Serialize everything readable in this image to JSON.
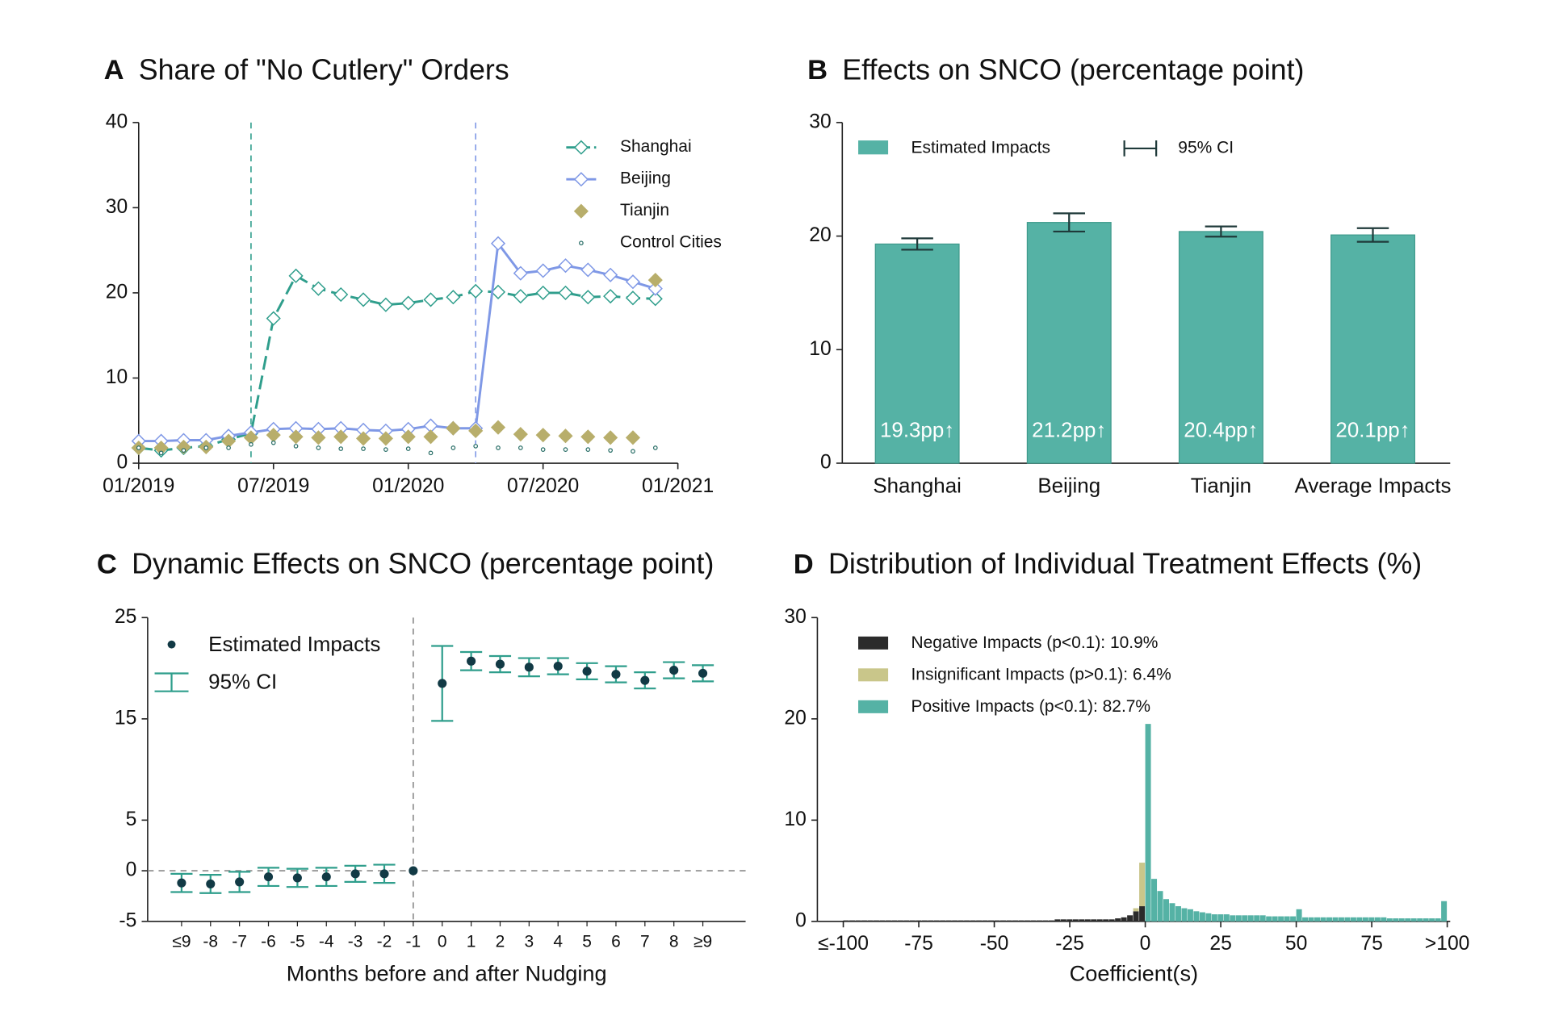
{
  "chart_data": [
    {
      "type": "line",
      "panel": "A",
      "title": "Share of \"No Cutlery\" Orders",
      "x": [
        "2019-01",
        "2019-02",
        "2019-03",
        "2019-04",
        "2019-05",
        "2019-06",
        "2019-07",
        "2019-08",
        "2019-09",
        "2019-10",
        "2019-11",
        "2019-12",
        "2020-01",
        "2020-02",
        "2020-03",
        "2020-04",
        "2020-05",
        "2020-06",
        "2020-07",
        "2020-08",
        "2020-09",
        "2020-10",
        "2020-11",
        "2020-12"
      ],
      "xlim": [
        "2019-01",
        "2021-01"
      ],
      "xticks": [
        {
          "value": "2019-01",
          "label": "01/2019"
        },
        {
          "value": "2019-07",
          "label": "07/2019"
        },
        {
          "value": "2020-01",
          "label": "01/2020"
        },
        {
          "value": "2020-07",
          "label": "07/2020"
        },
        {
          "value": "2021-01",
          "label": "01/2021"
        }
      ],
      "ylim": [
        0,
        40
      ],
      "yticks": [
        0,
        10,
        20,
        30,
        40
      ],
      "vlines": [
        {
          "x": "2019-06",
          "color": "#2f9e8c"
        },
        {
          "x": "2020-04",
          "color": "#7f98e6"
        }
      ],
      "series": [
        {
          "name": "Shanghai",
          "color": "#2f9e8c",
          "marker": "diamond-open",
          "line_style": "dashed",
          "values": [
            1.8,
            1.5,
            1.8,
            2.0,
            2.8,
            3.5,
            17.0,
            22.0,
            20.5,
            19.8,
            19.2,
            18.6,
            18.8,
            19.2,
            19.5,
            20.2,
            20.1,
            19.6,
            20.0,
            20.0,
            19.5,
            19.6,
            19.4,
            19.3
          ]
        },
        {
          "name": "Beijing",
          "color": "#7f98e6",
          "marker": "diamond-open",
          "line_style": "solid",
          "values": [
            2.6,
            2.6,
            2.7,
            2.7,
            3.2,
            3.6,
            4.0,
            4.1,
            4.0,
            4.1,
            3.9,
            3.8,
            4.0,
            4.4,
            4.1,
            4.1,
            25.8,
            22.3,
            22.6,
            23.2,
            22.7,
            22.1,
            21.3,
            20.5
          ]
        },
        {
          "name": "Tianjin",
          "color": "#b8ae6b",
          "marker": "diamond",
          "line_style": "none",
          "values": [
            1.8,
            1.8,
            1.9,
            1.9,
            2.6,
            3.0,
            3.3,
            3.1,
            3.0,
            3.1,
            2.9,
            2.9,
            3.1,
            3.1,
            4.1,
            3.8,
            4.2,
            3.4,
            3.3,
            3.2,
            3.1,
            3.0,
            3.0,
            21.5
          ]
        },
        {
          "name": "Control Cities",
          "color": "#2a6f68",
          "marker": "circle-open",
          "line_style": "none",
          "values": [
            1.8,
            1.2,
            1.5,
            1.8,
            1.8,
            2.2,
            2.4,
            2.0,
            1.8,
            1.7,
            1.7,
            1.6,
            1.7,
            1.2,
            1.8,
            2.0,
            1.8,
            1.8,
            1.6,
            1.6,
            1.6,
            1.5,
            1.4,
            1.8
          ]
        }
      ]
    },
    {
      "type": "bar",
      "panel": "B",
      "title": "Effects on SNCO (percentage point)",
      "categories": [
        "Shanghai",
        "Beijing",
        "Tianjin",
        "Average Impacts"
      ],
      "error_name": "95% CI",
      "error_color": "#1f3a3a",
      "ylim": [
        0,
        30
      ],
      "yticks": [
        0,
        10,
        20,
        30
      ],
      "series": [
        {
          "name": "Estimated Impacts",
          "color": "#55b2a5",
          "values": [
            19.3,
            21.2,
            20.4,
            20.1
          ],
          "value_labels": [
            "19.3pp↑",
            "21.2pp↑",
            "20.4pp↑",
            "20.1pp↑"
          ],
          "errors": [
            0.5,
            0.8,
            0.45,
            0.6
          ]
        }
      ]
    },
    {
      "type": "errorbar",
      "panel": "C",
      "title": "Dynamic Effects on SNCO (percentage point)",
      "x_label": "Months before and after Nudging",
      "categories": [
        "≤9",
        "-8",
        "-7",
        "-6",
        "-5",
        "-4",
        "-3",
        "-2",
        "-1",
        "0",
        "1",
        "2",
        "3",
        "4",
        "5",
        "6",
        "7",
        "8",
        "≥9"
      ],
      "error_name": "95% CI",
      "error_color": "#2f9e8c",
      "ylim": [
        -5,
        25
      ],
      "yticks": [
        -5,
        0,
        5,
        15,
        25
      ],
      "hline": 0,
      "vline": "-1",
      "series": [
        {
          "name": "Estimated Impacts",
          "color": "#123a45",
          "values": [
            -1.2,
            -1.3,
            -1.1,
            -0.6,
            -0.7,
            -0.6,
            -0.3,
            -0.3,
            0,
            18.5,
            20.7,
            20.4,
            20.1,
            20.2,
            19.7,
            19.4,
            18.8,
            19.8,
            19.5
          ],
          "errors": [
            0.9,
            0.9,
            1.0,
            0.9,
            0.9,
            0.9,
            0.8,
            0.9,
            0,
            3.7,
            0.9,
            0.8,
            0.9,
            0.8,
            0.8,
            0.8,
            0.8,
            0.8,
            0.8
          ]
        }
      ]
    },
    {
      "type": "histogram",
      "panel": "D",
      "title": "Distribution of Individual Treatment Effects (%)",
      "x_label": "Coefficient(s)",
      "bins": [
        -100,
        -98,
        -96,
        -94,
        -92,
        -90,
        -88,
        -86,
        -84,
        -82,
        -80,
        -78,
        -76,
        -74,
        -72,
        -70,
        -68,
        -66,
        -64,
        -62,
        -60,
        -58,
        -56,
        -54,
        -52,
        -50,
        -48,
        -46,
        -44,
        -42,
        -40,
        -38,
        -36,
        -34,
        -32,
        -30,
        -28,
        -26,
        -24,
        -22,
        -20,
        -18,
        -16,
        -14,
        -12,
        -10,
        -8,
        -6,
        -4,
        -2,
        0,
        2,
        4,
        6,
        8,
        10,
        12,
        14,
        16,
        18,
        20,
        22,
        24,
        26,
        28,
        30,
        32,
        34,
        36,
        38,
        40,
        42,
        44,
        46,
        48,
        50,
        52,
        54,
        56,
        58,
        60,
        62,
        64,
        66,
        68,
        70,
        72,
        74,
        76,
        78,
        80,
        82,
        84,
        86,
        88,
        90,
        92,
        94,
        96,
        98,
        100
      ],
      "xlim": [
        -100,
        100
      ],
      "xticks": [
        {
          "value": -100,
          "label": "≤-100"
        },
        -75,
        -50,
        -25,
        0,
        25,
        50,
        75,
        {
          "value": 100,
          "label": ">100"
        }
      ],
      "ylim": [
        0,
        30
      ],
      "yticks": [
        0,
        10,
        20,
        30
      ],
      "series": [
        {
          "name": "Negative Impacts (p<0.1): 10.9%",
          "color": "#2b2b2b",
          "values": [
            0.1,
            0.1,
            0.1,
            0.1,
            0.1,
            0.1,
            0.1,
            0.1,
            0.1,
            0.1,
            0.1,
            0.1,
            0.1,
            0.1,
            0.1,
            0.1,
            0.1,
            0.1,
            0.1,
            0.1,
            0.1,
            0.1,
            0.1,
            0.1,
            0.1,
            0.1,
            0.1,
            0.1,
            0.1,
            0.1,
            0.1,
            0.1,
            0.1,
            0.1,
            0.1,
            0.2,
            0.2,
            0.2,
            0.2,
            0.2,
            0.2,
            0.2,
            0.2,
            0.2,
            0.2,
            0.3,
            0.4,
            0.6,
            1.0,
            1.5,
            0,
            0,
            0,
            0,
            0,
            0,
            0,
            0,
            0,
            0,
            0,
            0,
            0,
            0,
            0,
            0,
            0,
            0,
            0,
            0,
            0,
            0,
            0,
            0,
            0,
            0,
            0,
            0,
            0,
            0,
            0,
            0,
            0,
            0,
            0,
            0,
            0,
            0,
            0,
            0,
            0,
            0,
            0,
            0,
            0,
            0,
            0,
            0,
            0,
            0
          ]
        },
        {
          "name": "Insignificant Impacts (p>0.1): 6.4%",
          "color": "#c9c68a",
          "values": [
            0,
            0,
            0,
            0,
            0,
            0,
            0,
            0,
            0,
            0,
            0,
            0,
            0,
            0,
            0,
            0,
            0,
            0,
            0,
            0,
            0,
            0,
            0,
            0,
            0,
            0,
            0,
            0,
            0,
            0,
            0,
            0,
            0,
            0,
            0,
            0,
            0,
            0,
            0,
            0,
            0,
            0,
            0,
            0,
            0,
            0,
            0,
            0,
            0.3,
            4.3,
            0,
            0,
            0,
            0,
            0,
            0,
            0,
            0,
            0,
            0,
            0,
            0,
            0,
            0,
            0,
            0,
            0,
            0,
            0,
            0,
            0,
            0,
            0,
            0,
            0,
            0,
            0,
            0,
            0,
            0,
            0,
            0,
            0,
            0,
            0,
            0,
            0,
            0,
            0,
            0,
            0,
            0,
            0,
            0,
            0,
            0,
            0,
            0,
            0,
            0
          ]
        },
        {
          "name": "Positive Impacts (p<0.1): 82.7%",
          "color": "#55b2a5",
          "values": [
            0,
            0,
            0,
            0,
            0,
            0,
            0,
            0,
            0,
            0,
            0,
            0,
            0,
            0,
            0,
            0,
            0,
            0,
            0,
            0,
            0,
            0,
            0,
            0,
            0,
            0,
            0,
            0,
            0,
            0,
            0,
            0,
            0,
            0,
            0,
            0,
            0,
            0,
            0,
            0,
            0,
            0,
            0,
            0,
            0,
            0,
            0,
            0,
            0,
            0,
            19.5,
            4.2,
            3.0,
            2.2,
            1.8,
            1.5,
            1.3,
            1.2,
            1.0,
            0.9,
            0.8,
            0.7,
            0.7,
            0.7,
            0.6,
            0.6,
            0.6,
            0.6,
            0.6,
            0.6,
            0.5,
            0.5,
            0.5,
            0.5,
            0.5,
            1.2,
            0.4,
            0.4,
            0.4,
            0.4,
            0.4,
            0.4,
            0.4,
            0.4,
            0.4,
            0.4,
            0.4,
            0.4,
            0.4,
            0.4,
            0.3,
            0.3,
            0.3,
            0.3,
            0.3,
            0.3,
            0.3,
            0.3,
            0.3,
            2.0
          ]
        }
      ]
    }
  ]
}
